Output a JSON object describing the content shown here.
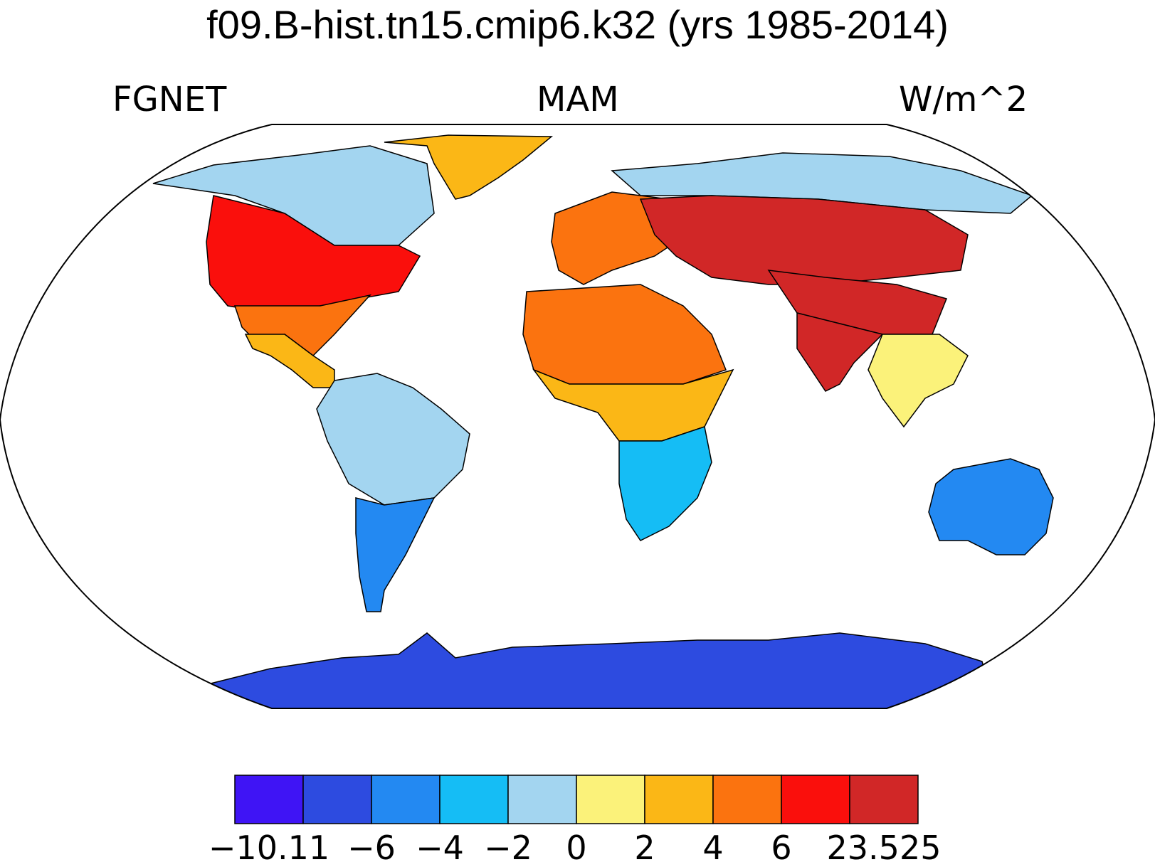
{
  "title": "f09.B-hist.tn15.cmip6.k32 (yrs 1985-2014)",
  "left_string": "FGNET",
  "center_string": "MAM",
  "right_string": "W/m^2",
  "colorbar": {
    "colors": [
      "#3f14f5",
      "#2d4be0",
      "#2389f2",
      "#15bdf5",
      "#a3d5f0",
      "#fbf27a",
      "#fbb716",
      "#fb730f",
      "#fa0f0c",
      "#d12727"
    ],
    "labels": [
      "−10.11",
      "−6",
      "−4",
      "−2",
      "0",
      "2",
      "4",
      "6",
      "23.525"
    ]
  },
  "map": {
    "projection": "Robinson",
    "variable": "FGNET",
    "season": "MAM",
    "units": "W/m^2",
    "regions": [
      {
        "name": "Greenland",
        "level": 7
      },
      {
        "name": "Arctic Canada",
        "level": 5
      },
      {
        "name": "Central North America",
        "level": 9
      },
      {
        "name": "Eastern United States",
        "level": 8
      },
      {
        "name": "Mexico",
        "level": 7
      },
      {
        "name": "Amazon Basin",
        "level": 5
      },
      {
        "name": "Patagonia",
        "level": 3
      },
      {
        "name": "Sahara",
        "level": 8
      },
      {
        "name": "Sahel",
        "level": 7
      },
      {
        "name": "Southern Africa",
        "level": 4
      },
      {
        "name": "Europe",
        "level": 8
      },
      {
        "name": "Siberia",
        "level": 5
      },
      {
        "name": "Central Asia",
        "level": 10
      },
      {
        "name": "Tibetan Plateau",
        "level": 10
      },
      {
        "name": "India",
        "level": 10
      },
      {
        "name": "Southeast Asia",
        "level": 6
      },
      {
        "name": "Australia",
        "level": 3
      },
      {
        "name": "Antarctica",
        "level": 2
      }
    ]
  }
}
